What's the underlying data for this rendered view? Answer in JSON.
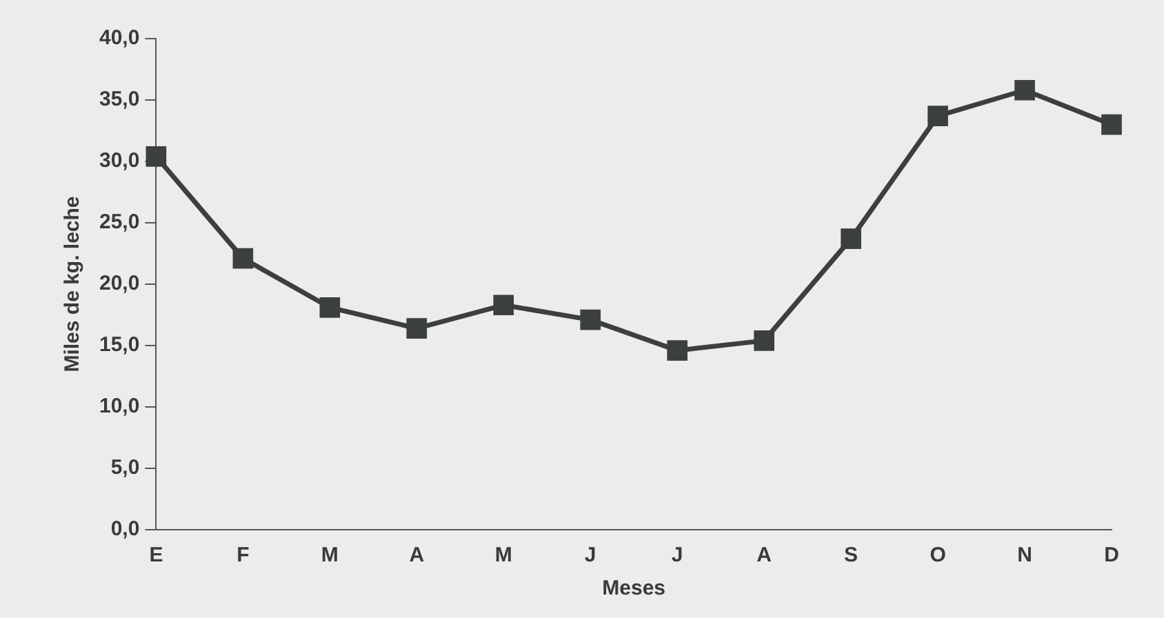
{
  "chart_data": {
    "type": "line",
    "xlabel": "Meses",
    "ylabel": "Miles de kg. leche",
    "categories": [
      "E",
      "F",
      "M",
      "A",
      "M",
      "J",
      "J",
      "A",
      "S",
      "O",
      "N",
      "D"
    ],
    "series": [
      {
        "color": "#3b403d",
        "values": [
          30.4,
          22.1,
          18.1,
          16.4,
          18.3,
          17.1,
          14.6,
          15.4,
          23.7,
          33.7,
          35.8,
          33.0
        ]
      }
    ],
    "ylim": [
      0,
      40
    ],
    "yticks": [
      {
        "value": 0,
        "label": "0,0"
      },
      {
        "value": 5,
        "label": "5,0"
      },
      {
        "value": 10,
        "label": "10,0"
      },
      {
        "value": 15,
        "label": "15,0"
      },
      {
        "value": 20,
        "label": "20,0"
      },
      {
        "value": 25,
        "label": "25,0"
      },
      {
        "value": 30,
        "label": "30,0"
      },
      {
        "value": 35,
        "label": "35,0"
      },
      {
        "value": 40,
        "label": "40,0"
      }
    ],
    "grid": false,
    "legend": false,
    "marker": "square",
    "line_style": "solid"
  }
}
